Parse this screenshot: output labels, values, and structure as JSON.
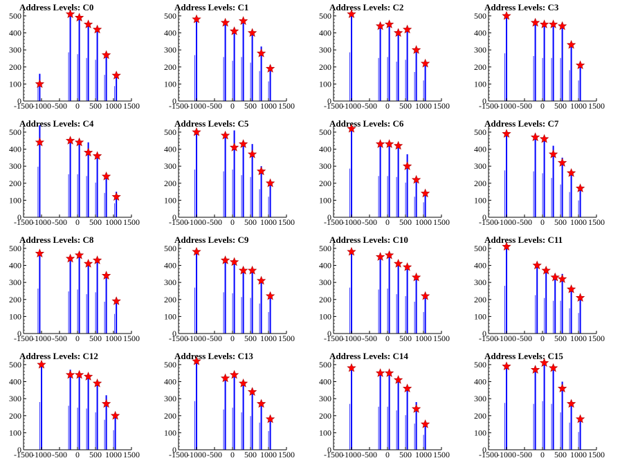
{
  "chart_data": [
    {
      "type": "bar",
      "title": "Address Levels: C0",
      "xlim": [
        -1500,
        1500
      ],
      "ylim": [
        0,
        520
      ],
      "x_ticks": [
        "-1500",
        "-1000",
        "-500",
        "0",
        "500",
        "1000",
        "1500"
      ],
      "y_ticks": [
        "0",
        "100",
        "200",
        "300",
        "400",
        "500"
      ],
      "series": [
        {
          "x": [
            -1050,
            -200,
            50,
            300,
            550,
            800,
            1080
          ],
          "values": [
            160,
            520,
            500,
            460,
            440,
            280,
            160
          ]
        }
      ],
      "markers": [
        {
          "x": [
            -1050,
            -200,
            50,
            300,
            550,
            800,
            1080
          ],
          "values": [
            100,
            510,
            490,
            450,
            420,
            270,
            150
          ]
        }
      ]
    },
    {
      "type": "bar",
      "title": "Address Levels: C1",
      "xlim": [
        -1500,
        1500
      ],
      "ylim": [
        0,
        520
      ],
      "x_ticks": [
        "-1500",
        "-1000",
        "-500",
        "0",
        "500",
        "1000",
        "1500"
      ],
      "y_ticks": [
        "0",
        "100",
        "200",
        "300",
        "400",
        "500"
      ],
      "series": [
        {
          "x": [
            -1000,
            -200,
            50,
            300,
            550,
            800,
            1050
          ],
          "values": [
            490,
            470,
            430,
            470,
            410,
            320,
            210
          ]
        }
      ],
      "markers": [
        {
          "x": [
            -1000,
            -200,
            50,
            300,
            550,
            800,
            1050
          ],
          "values": [
            480,
            460,
            410,
            470,
            400,
            280,
            190
          ]
        }
      ]
    },
    {
      "type": "bar",
      "title": "Address Levels: C2",
      "xlim": [
        -1500,
        1500
      ],
      "ylim": [
        0,
        520
      ],
      "x_ticks": [
        "-1500",
        "-1000",
        "-500",
        "0",
        "500",
        "1000",
        "1500"
      ],
      "y_ticks": [
        "0",
        "100",
        "200",
        "300",
        "400",
        "500"
      ],
      "series": [
        {
          "x": [
            -1000,
            -200,
            50,
            300,
            550,
            800,
            1050
          ],
          "values": [
            520,
            460,
            470,
            420,
            440,
            310,
            220
          ]
        }
      ],
      "markers": [
        {
          "x": [
            -1000,
            -200,
            50,
            300,
            550,
            800,
            1050
          ],
          "values": [
            510,
            440,
            450,
            400,
            420,
            300,
            220
          ]
        }
      ]
    },
    {
      "type": "bar",
      "title": "Address Levels: C3",
      "xlim": [
        -1500,
        1500
      ],
      "ylim": [
        0,
        520
      ],
      "x_ticks": [
        "-1500",
        "-1000",
        "-500",
        "0",
        "500",
        "1000",
        "1500"
      ],
      "y_ticks": [
        "0",
        "100",
        "200",
        "300",
        "400",
        "500"
      ],
      "series": [
        {
          "x": [
            -1000,
            -200,
            50,
            300,
            550,
            800,
            1050
          ],
          "values": [
            510,
            480,
            460,
            460,
            460,
            330,
            220
          ]
        }
      ],
      "markers": [
        {
          "x": [
            -1000,
            -200,
            50,
            300,
            550,
            800,
            1050
          ],
          "values": [
            500,
            460,
            450,
            450,
            440,
            330,
            210
          ]
        }
      ]
    },
    {
      "type": "bar",
      "title": "Address Levels: C4",
      "xlim": [
        -1500,
        1500
      ],
      "ylim": [
        0,
        520
      ],
      "x_ticks": [
        "-1500",
        "-1000",
        "-500",
        "0",
        "500",
        "1000",
        "1500"
      ],
      "y_ticks": [
        "0",
        "100",
        "200",
        "300",
        "400",
        "500"
      ],
      "series": [
        {
          "x": [
            -1050,
            -200,
            50,
            300,
            550,
            800,
            1080
          ],
          "values": [
            540,
            460,
            460,
            440,
            370,
            260,
            150
          ]
        }
      ],
      "markers": [
        {
          "x": [
            -1050,
            -200,
            50,
            300,
            550,
            800,
            1080
          ],
          "values": [
            440,
            450,
            440,
            380,
            360,
            240,
            120
          ]
        }
      ]
    },
    {
      "type": "bar",
      "title": "Address Levels: C5",
      "xlim": [
        -1500,
        1500
      ],
      "ylim": [
        0,
        520
      ],
      "x_ticks": [
        "-1500",
        "-1000",
        "-500",
        "0",
        "500",
        "1000",
        "1500"
      ],
      "y_ticks": [
        "0",
        "100",
        "200",
        "300",
        "400",
        "500"
      ],
      "series": [
        {
          "x": [
            -1000,
            -200,
            50,
            300,
            550,
            800,
            1050
          ],
          "values": [
            510,
            490,
            510,
            450,
            430,
            300,
            220
          ]
        }
      ],
      "markers": [
        {
          "x": [
            -1000,
            -200,
            50,
            300,
            550,
            800,
            1050
          ],
          "values": [
            500,
            480,
            410,
            430,
            370,
            270,
            200
          ]
        }
      ]
    },
    {
      "type": "bar",
      "title": "Address Levels: C6",
      "xlim": [
        -1500,
        1500
      ],
      "ylim": [
        0,
        520
      ],
      "x_ticks": [
        "-1500",
        "-1000",
        "-500",
        "0",
        "500",
        "1000",
        "1500"
      ],
      "y_ticks": [
        "0",
        "100",
        "200",
        "300",
        "400",
        "500"
      ],
      "series": [
        {
          "x": [
            -1000,
            -200,
            50,
            300,
            550,
            800,
            1050
          ],
          "values": [
            520,
            440,
            440,
            430,
            370,
            220,
            160
          ]
        }
      ],
      "markers": [
        {
          "x": [
            -1000,
            -200,
            50,
            300,
            550,
            800,
            1050
          ],
          "values": [
            520,
            430,
            430,
            420,
            300,
            220,
            140
          ]
        }
      ]
    },
    {
      "type": "bar",
      "title": "Address Levels: C7",
      "xlim": [
        -1500,
        1500
      ],
      "ylim": [
        0,
        520
      ],
      "x_ticks": [
        "-1500",
        "-1000",
        "-500",
        "0",
        "500",
        "1000",
        "1500"
      ],
      "y_ticks": [
        "0",
        "100",
        "200",
        "300",
        "400",
        "500"
      ],
      "series": [
        {
          "x": [
            -1000,
            -200,
            50,
            300,
            550,
            800,
            1050
          ],
          "values": [
            500,
            490,
            470,
            420,
            350,
            270,
            180
          ]
        }
      ],
      "markers": [
        {
          "x": [
            -1000,
            -200,
            50,
            300,
            550,
            800,
            1050
          ],
          "values": [
            490,
            470,
            460,
            370,
            320,
            260,
            170
          ]
        }
      ]
    },
    {
      "type": "bar",
      "title": "Address Levels: C8",
      "xlim": [
        -1500,
        1500
      ],
      "ylim": [
        0,
        520
      ],
      "x_ticks": [
        "-1500",
        "-1000",
        "-500",
        "0",
        "500",
        "1000",
        "1500"
      ],
      "y_ticks": [
        "0",
        "100",
        "200",
        "300",
        "400",
        "500"
      ],
      "series": [
        {
          "x": [
            -1050,
            -200,
            50,
            300,
            550,
            800,
            1080
          ],
          "values": [
            480,
            450,
            470,
            420,
            440,
            340,
            210
          ]
        }
      ],
      "markers": [
        {
          "x": [
            -1050,
            -200,
            50,
            300,
            550,
            800,
            1080
          ],
          "values": [
            470,
            440,
            460,
            410,
            430,
            340,
            190
          ]
        }
      ]
    },
    {
      "type": "bar",
      "title": "Address Levels: C9",
      "xlim": [
        -1500,
        1500
      ],
      "ylim": [
        0,
        520
      ],
      "x_ticks": [
        "-1500",
        "-1000",
        "-500",
        "0",
        "500",
        "1000",
        "1500"
      ],
      "y_ticks": [
        "0",
        "100",
        "200",
        "300",
        "400",
        "500"
      ],
      "series": [
        {
          "x": [
            -1000,
            -200,
            50,
            300,
            550,
            800,
            1050
          ],
          "values": [
            490,
            440,
            430,
            390,
            380,
            320,
            230
          ]
        }
      ],
      "markers": [
        {
          "x": [
            -1000,
            -200,
            50,
            300,
            550,
            800,
            1050
          ],
          "values": [
            480,
            430,
            420,
            370,
            370,
            310,
            220
          ]
        }
      ]
    },
    {
      "type": "bar",
      "title": "Address Levels: C10",
      "xlim": [
        -1500,
        1500
      ],
      "ylim": [
        0,
        520
      ],
      "x_ticks": [
        "-1500",
        "-1000",
        "-500",
        "0",
        "500",
        "1000",
        "1500"
      ],
      "y_ticks": [
        "0",
        "100",
        "200",
        "300",
        "400",
        "500"
      ],
      "series": [
        {
          "x": [
            -1000,
            -200,
            50,
            300,
            550,
            800,
            1050
          ],
          "values": [
            490,
            470,
            480,
            420,
            400,
            340,
            230
          ]
        }
      ],
      "markers": [
        {
          "x": [
            -1000,
            -200,
            50,
            300,
            550,
            800,
            1050
          ],
          "values": [
            480,
            450,
            460,
            410,
            390,
            330,
            220
          ]
        }
      ]
    },
    {
      "type": "bar",
      "title": "Address Levels: C11",
      "xlim": [
        -1500,
        1500
      ],
      "ylim": [
        0,
        520
      ],
      "x_ticks": [
        "-1500",
        "-1000",
        "-500",
        "0",
        "500",
        "1000",
        "1500"
      ],
      "y_ticks": [
        "0",
        "100",
        "200",
        "300",
        "400",
        "500"
      ],
      "series": [
        {
          "x": [
            -1000,
            -150,
            100,
            350,
            550,
            800,
            1050
          ],
          "values": [
            510,
            410,
            380,
            350,
            350,
            270,
            220
          ]
        }
      ],
      "markers": [
        {
          "x": [
            -1000,
            -150,
            100,
            350,
            550,
            800,
            1050
          ],
          "values": [
            510,
            400,
            370,
            330,
            320,
            260,
            210
          ]
        }
      ]
    },
    {
      "type": "bar",
      "title": "Address Levels: C12",
      "xlim": [
        -1500,
        1500
      ],
      "ylim": [
        0,
        520
      ],
      "x_ticks": [
        "-1500",
        "-1000",
        "-500",
        "0",
        "500",
        "1000",
        "1500"
      ],
      "y_ticks": [
        "0",
        "100",
        "200",
        "300",
        "400",
        "500"
      ],
      "series": [
        {
          "x": [
            -1000,
            -200,
            50,
            300,
            550,
            800,
            1050
          ],
          "values": [
            510,
            470,
            450,
            440,
            400,
            320,
            210
          ]
        }
      ],
      "markers": [
        {
          "x": [
            -1000,
            -200,
            50,
            300,
            550,
            800,
            1050
          ],
          "values": [
            500,
            440,
            440,
            430,
            390,
            270,
            200
          ]
        }
      ]
    },
    {
      "type": "bar",
      "title": "Address Levels: C13",
      "xlim": [
        -1500,
        1500
      ],
      "ylim": [
        0,
        520
      ],
      "x_ticks": [
        "-1500",
        "-1000",
        "-500",
        "0",
        "500",
        "1000",
        "1500"
      ],
      "y_ticks": [
        "0",
        "100",
        "200",
        "300",
        "400",
        "500"
      ],
      "series": [
        {
          "x": [
            -1000,
            -200,
            50,
            300,
            550,
            800,
            1050
          ],
          "values": [
            520,
            430,
            450,
            400,
            360,
            290,
            200
          ]
        }
      ],
      "markers": [
        {
          "x": [
            -1000,
            -200,
            50,
            300,
            550,
            800,
            1050
          ],
          "values": [
            520,
            420,
            440,
            390,
            340,
            270,
            180
          ]
        }
      ]
    },
    {
      "type": "bar",
      "title": "Address Levels: C14",
      "xlim": [
        -1500,
        1500
      ],
      "ylim": [
        0,
        520
      ],
      "x_ticks": [
        "-1500",
        "-1000",
        "-500",
        "0",
        "500",
        "1000",
        "1500"
      ],
      "y_ticks": [
        "0",
        "100",
        "200",
        "300",
        "400",
        "500"
      ],
      "series": [
        {
          "x": [
            -1000,
            -200,
            50,
            300,
            550,
            800,
            1050
          ],
          "values": [
            490,
            460,
            460,
            420,
            370,
            280,
            160
          ]
        }
      ],
      "markers": [
        {
          "x": [
            -1000,
            -200,
            50,
            300,
            550,
            800,
            1050
          ],
          "values": [
            480,
            450,
            450,
            410,
            360,
            240,
            150
          ]
        }
      ]
    },
    {
      "type": "bar",
      "title": "Address Levels: C15",
      "xlim": [
        -1500,
        1500
      ],
      "ylim": [
        0,
        520
      ],
      "x_ticks": [
        "-1500",
        "-1000",
        "-500",
        "0",
        "500",
        "1000",
        "1500"
      ],
      "y_ticks": [
        "0",
        "100",
        "200",
        "300",
        "400",
        "500"
      ],
      "series": [
        {
          "x": [
            -1000,
            -200,
            50,
            300,
            550,
            800,
            1050
          ],
          "values": [
            500,
            490,
            520,
            490,
            400,
            290,
            190
          ]
        }
      ],
      "markers": [
        {
          "x": [
            -1000,
            -200,
            50,
            300,
            550,
            800,
            1050
          ],
          "values": [
            490,
            470,
            510,
            480,
            360,
            270,
            180
          ]
        }
      ]
    }
  ],
  "colors": {
    "bar": "#0000ff",
    "marker_fill": "#ff0000",
    "marker_stroke": "#aa0000",
    "axis": "#000000"
  }
}
